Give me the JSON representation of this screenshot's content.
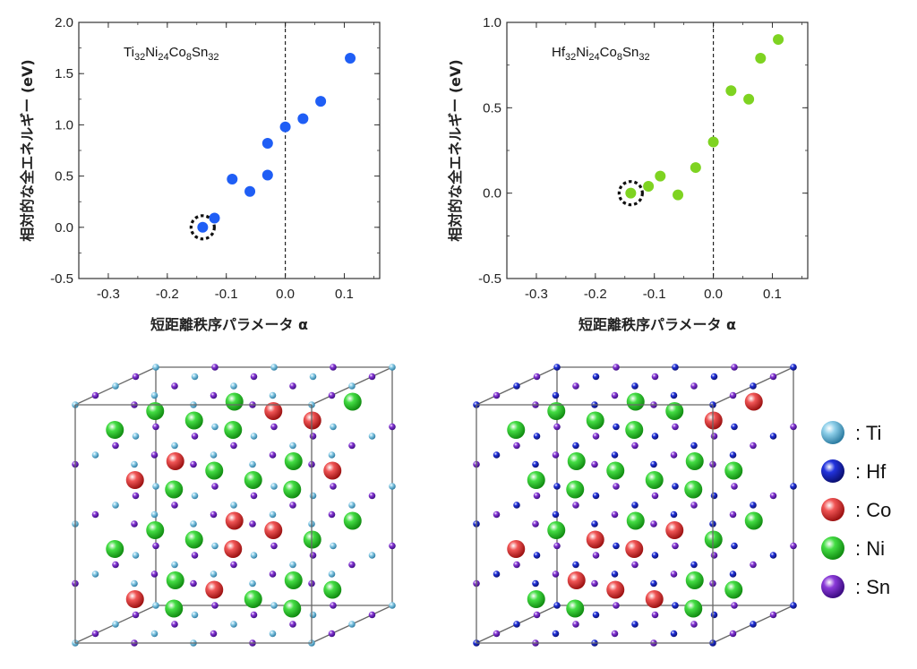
{
  "chart_data": [
    {
      "type": "scatter",
      "formula": {
        "parts": [
          {
            "t": "Ti"
          },
          {
            "t": "32",
            "sub": true
          },
          {
            "t": "Ni"
          },
          {
            "t": "24",
            "sub": true
          },
          {
            "t": "Co"
          },
          {
            "t": "8",
            "sub": true
          },
          {
            "t": "Sn"
          },
          {
            "t": "32",
            "sub": true
          }
        ]
      },
      "xlabel": "短距離秩序パラメータ α",
      "ylabel": "相対的な全エネルギー (eV)",
      "xlim": [
        -0.35,
        0.16
      ],
      "ylim": [
        -0.5,
        2.0
      ],
      "xticks": [
        -0.3,
        -0.2,
        -0.1,
        0.0,
        0.1
      ],
      "yticks": [
        -0.5,
        0.0,
        0.5,
        1.0,
        1.5,
        2.0
      ],
      "vline_x": 0.0,
      "color": "#1f5ef5",
      "points": [
        {
          "x": -0.14,
          "y": 0.0,
          "highlight": true
        },
        {
          "x": -0.12,
          "y": 0.09
        },
        {
          "x": -0.09,
          "y": 0.47
        },
        {
          "x": -0.06,
          "y": 0.35
        },
        {
          "x": -0.03,
          "y": 0.51
        },
        {
          "x": -0.03,
          "y": 0.82
        },
        {
          "x": 0.0,
          "y": 0.98
        },
        {
          "x": 0.03,
          "y": 1.06
        },
        {
          "x": 0.06,
          "y": 1.23
        },
        {
          "x": 0.11,
          "y": 1.65
        }
      ]
    },
    {
      "type": "scatter",
      "formula": {
        "parts": [
          {
            "t": "Hf"
          },
          {
            "t": "32",
            "sub": true
          },
          {
            "t": "Ni"
          },
          {
            "t": "24",
            "sub": true
          },
          {
            "t": "Co"
          },
          {
            "t": "8",
            "sub": true
          },
          {
            "t": "Sn"
          },
          {
            "t": "32",
            "sub": true
          }
        ]
      },
      "xlabel": "短距離秩序パラメータ α",
      "ylabel": "相対的な全エネルギー (eV)",
      "xlim": [
        -0.35,
        0.16
      ],
      "ylim": [
        -0.5,
        1.0
      ],
      "xticks": [
        -0.3,
        -0.2,
        -0.1,
        0.0,
        0.1
      ],
      "yticks": [
        -0.5,
        0.0,
        0.5,
        1.0
      ],
      "vline_x": 0.0,
      "color": "#7ed321",
      "points": [
        {
          "x": -0.14,
          "y": 0.0,
          "highlight": true
        },
        {
          "x": -0.11,
          "y": 0.04
        },
        {
          "x": -0.09,
          "y": 0.1
        },
        {
          "x": -0.06,
          "y": -0.01
        },
        {
          "x": -0.03,
          "y": 0.15
        },
        {
          "x": 0.0,
          "y": 0.3
        },
        {
          "x": 0.03,
          "y": 0.6
        },
        {
          "x": 0.06,
          "y": 0.55
        },
        {
          "x": 0.08,
          "y": 0.79
        },
        {
          "x": 0.11,
          "y": 0.9
        }
      ]
    }
  ],
  "legend": [
    {
      "label": ": Ti",
      "color": "#8fd0ea",
      "dark": "#2a7aa0"
    },
    {
      "label": ": Hf",
      "color": "#2233dd",
      "dark": "#0a0f70"
    },
    {
      "label": ": Co",
      "color": "#f05555",
      "dark": "#9a1010"
    },
    {
      "label": ": Ni",
      "color": "#44dd44",
      "dark": "#108a10"
    },
    {
      "label": ": Sn",
      "color": "#8a3ad8",
      "dark": "#3a0a80"
    }
  ],
  "structures": [
    {
      "name": "Ti-structure",
      "a_color": "#8fd0ea",
      "a_dark": "#2a7aa0",
      "seed": 7
    },
    {
      "name": "Hf-structure",
      "a_color": "#2233dd",
      "a_dark": "#0a0f70",
      "seed": 13
    }
  ]
}
